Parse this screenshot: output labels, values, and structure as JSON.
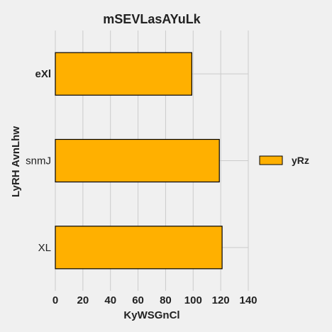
{
  "chart_data": {
    "type": "bar",
    "orientation": "horizontal",
    "title": "mSEVLasAYuLk",
    "xlabel": "KyWSGnCl",
    "ylabel": "LyRH AvnLhw",
    "categories": [
      "eXl",
      "snmJ",
      "XL"
    ],
    "series": [
      {
        "name": "yRz",
        "values": [
          99,
          119,
          121
        ],
        "color": "#ffb000"
      }
    ],
    "xlim": [
      0,
      140
    ],
    "xticks": [
      0,
      20,
      40,
      60,
      80,
      100,
      120,
      140
    ],
    "grid": true,
    "legend": "right"
  }
}
